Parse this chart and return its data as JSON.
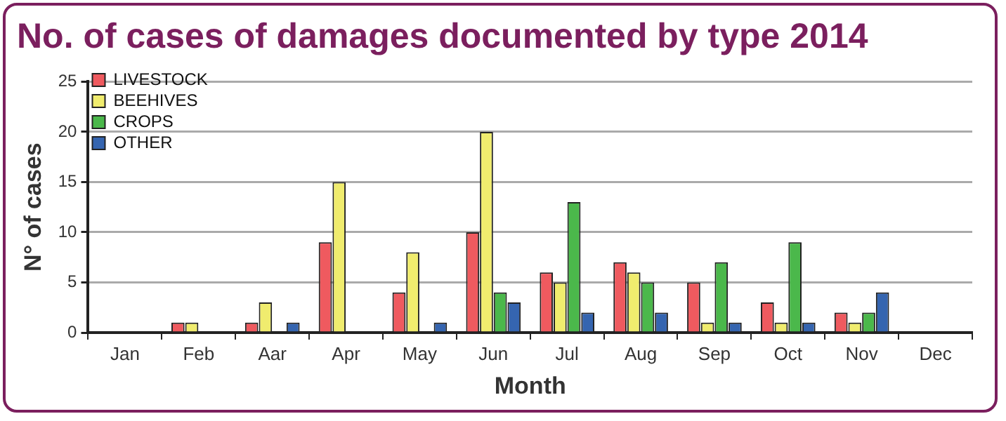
{
  "chart_data": {
    "type": "bar",
    "title": "No. of cases of damages documented by type 2014",
    "xlabel": "Month",
    "ylabel": "N° of cases",
    "categories": [
      "Jan",
      "Feb",
      "Aar",
      "Apr",
      "May",
      "Jun",
      "Jul",
      "Aug",
      "Sep",
      "Oct",
      "Nov",
      "Dec"
    ],
    "series": [
      {
        "name": "LIVESTOCK",
        "color": "#ef5a5f",
        "values": [
          0,
          1,
          1,
          9,
          4,
          10,
          6,
          7,
          5,
          3,
          2,
          0
        ]
      },
      {
        "name": "BEEHIVES",
        "color": "#f0ec6e",
        "values": [
          0,
          1,
          3,
          15,
          8,
          20,
          5,
          6,
          1,
          1,
          1,
          0
        ]
      },
      {
        "name": "CROPS",
        "color": "#4bb84b",
        "values": [
          0,
          0,
          0,
          0,
          0,
          4,
          13,
          5,
          7,
          9,
          2,
          0
        ]
      },
      {
        "name": "OTHER",
        "color": "#3565b0",
        "values": [
          0,
          0,
          1,
          0,
          1,
          3,
          2,
          2,
          1,
          1,
          4,
          0
        ]
      }
    ],
    "ylim": [
      0,
      25
    ],
    "yticks": [
      0,
      5,
      10,
      15,
      20,
      25
    ],
    "grid": "y",
    "legend": "top left"
  }
}
